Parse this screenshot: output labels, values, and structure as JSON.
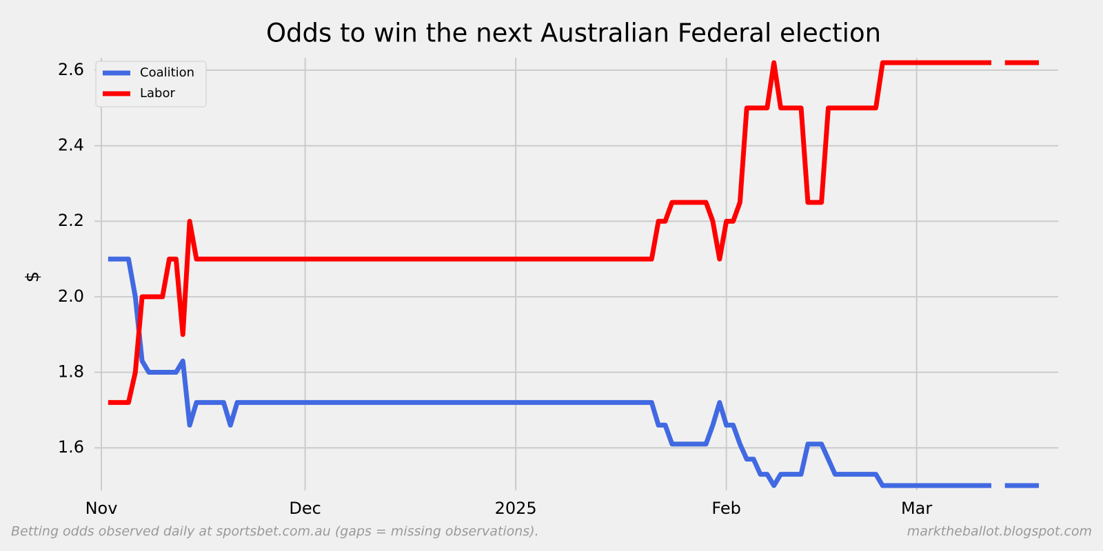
{
  "chart_data": {
    "type": "line",
    "title": "Odds to win the next Australian Federal election",
    "y_label": "$",
    "footer_left": "Betting odds observed daily at sportsbet.com.au (gaps = missing observations).",
    "footer_right": "marktheballot.blogspot.com",
    "categories": [
      "Nov",
      null,
      null,
      null,
      null,
      null,
      null,
      null,
      null,
      null,
      null,
      null,
      null,
      null,
      null,
      null,
      null,
      null,
      null,
      null,
      null,
      null,
      null,
      null,
      null,
      null,
      null,
      null,
      null,
      null,
      "Dec",
      null,
      null,
      null,
      null,
      null,
      null,
      null,
      null,
      null,
      null,
      null,
      null,
      null,
      null,
      null,
      null,
      null,
      null,
      null,
      null,
      null,
      null,
      null,
      null,
      null,
      null,
      null,
      null,
      null,
      null,
      "2025",
      null,
      null,
      null,
      null,
      null,
      null,
      null,
      null,
      null,
      null,
      null,
      null,
      null,
      null,
      null,
      null,
      null,
      null,
      null,
      null,
      null,
      null,
      null,
      null,
      null,
      null,
      null,
      null,
      null,
      null,
      "Feb",
      null,
      null,
      null,
      null,
      null,
      null,
      null,
      null,
      null,
      null,
      null,
      null,
      null,
      null,
      null,
      null,
      null,
      null,
      null,
      null,
      null,
      null,
      null,
      null,
      null,
      null,
      null,
      "Mar",
      null,
      null,
      null,
      null,
      null,
      null,
      null,
      null,
      null,
      null,
      null,
      null,
      null,
      null,
      null,
      null,
      null,
      null
    ],
    "series": [
      {
        "name": "Coalition",
        "color": "#4169e1",
        "values": [
          null,
          2.1,
          2.1,
          2.1,
          2.1,
          2,
          1.83,
          1.8,
          1.8,
          1.8,
          1.8,
          1.8,
          1.83,
          1.66,
          1.72,
          1.72,
          1.72,
          1.72,
          1.72,
          1.66,
          1.72,
          1.72,
          1.72,
          1.72,
          1.72,
          1.72,
          1.72,
          1.72,
          1.72,
          1.72,
          1.72,
          1.72,
          1.72,
          1.72,
          1.72,
          1.72,
          1.72,
          1.72,
          1.72,
          1.72,
          1.72,
          1.72,
          1.72,
          1.72,
          1.72,
          1.72,
          1.72,
          1.72,
          1.72,
          1.72,
          1.72,
          1.72,
          1.72,
          1.72,
          1.72,
          1.72,
          1.72,
          1.72,
          1.72,
          1.72,
          1.72,
          1.72,
          1.72,
          1.72,
          1.72,
          1.72,
          1.72,
          1.72,
          1.72,
          1.72,
          1.72,
          1.72,
          1.72,
          1.72,
          1.72,
          1.72,
          1.72,
          1.72,
          1.72,
          1.72,
          1.72,
          1.72,
          1.66,
          1.66,
          1.61,
          1.61,
          1.61,
          1.61,
          1.61,
          1.61,
          1.66,
          1.72,
          1.66,
          1.66,
          1.61,
          1.57,
          1.57,
          1.53,
          1.53,
          1.5,
          1.53,
          1.53,
          1.53,
          1.53,
          1.61,
          1.61,
          1.61,
          1.57,
          1.53,
          1.53,
          1.53,
          1.53,
          1.53,
          1.53,
          1.53,
          1.5,
          1.5,
          1.5,
          1.5,
          1.5,
          1.5,
          1.5,
          1.5,
          1.5,
          1.5,
          1.5,
          1.5,
          1.5,
          1.5,
          1.5,
          1.5,
          1.5,
          null,
          1.5,
          1.5,
          1.5,
          1.5,
          1.5,
          1.5
        ]
      },
      {
        "name": "Labor",
        "color": "#ff0000",
        "values": [
          null,
          1.72,
          1.72,
          1.72,
          1.72,
          1.8,
          2,
          2,
          2,
          2,
          2.1,
          2.1,
          1.9,
          2.2,
          2.1,
          2.1,
          2.1,
          2.1,
          2.1,
          2.1,
          2.1,
          2.1,
          2.1,
          2.1,
          2.1,
          2.1,
          2.1,
          2.1,
          2.1,
          2.1,
          2.1,
          2.1,
          2.1,
          2.1,
          2.1,
          2.1,
          2.1,
          2.1,
          2.1,
          2.1,
          2.1,
          2.1,
          2.1,
          2.1,
          2.1,
          2.1,
          2.1,
          2.1,
          2.1,
          2.1,
          2.1,
          2.1,
          2.1,
          2.1,
          2.1,
          2.1,
          2.1,
          2.1,
          2.1,
          2.1,
          2.1,
          2.1,
          2.1,
          2.1,
          2.1,
          2.1,
          2.1,
          2.1,
          2.1,
          2.1,
          2.1,
          2.1,
          2.1,
          2.1,
          2.1,
          2.1,
          2.1,
          2.1,
          2.1,
          2.1,
          2.1,
          2.1,
          2.2,
          2.2,
          2.25,
          2.25,
          2.25,
          2.25,
          2.25,
          2.25,
          2.2,
          2.1,
          2.2,
          2.2,
          2.25,
          2.5,
          2.5,
          2.5,
          2.5,
          2.62,
          2.5,
          2.5,
          2.5,
          2.5,
          2.25,
          2.25,
          2.25,
          2.5,
          2.5,
          2.5,
          2.5,
          2.5,
          2.5,
          2.5,
          2.5,
          2.62,
          2.62,
          2.62,
          2.62,
          2.62,
          2.62,
          2.62,
          2.62,
          2.62,
          2.62,
          2.62,
          2.62,
          2.62,
          2.62,
          2.62,
          2.62,
          2.62,
          null,
          2.62,
          2.62,
          2.62,
          2.62,
          2.62,
          2.62
        ]
      }
    ],
    "ylim": [
      1.48,
      2.64
    ],
    "yticks": [
      1.6,
      1.8,
      {
        "value": 2,
        "label": "2.0"
      },
      2.2,
      2.4,
      2.6
    ],
    "grid": true,
    "legend": "upper left"
  }
}
